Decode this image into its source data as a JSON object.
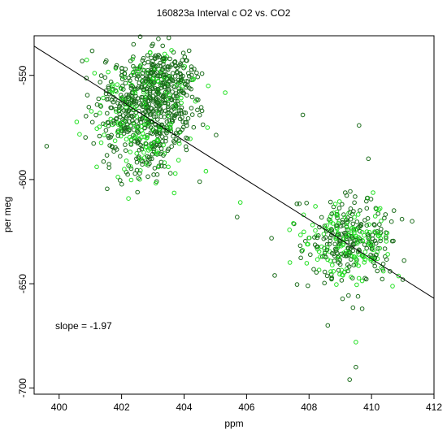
{
  "chart_data": {
    "type": "scatter",
    "title": "160823a   Interval c O2 vs. CO2",
    "xlabel": "ppm",
    "ylabel": "per meg",
    "xlim": [
      399.2,
      412.0
    ],
    "ylim": [
      -703,
      -531
    ],
    "xticks": [
      400,
      402,
      404,
      406,
      408,
      410,
      412
    ],
    "yticks": [
      -700,
      -650,
      -600,
      -550
    ],
    "grid": false,
    "annotation": "slope =  -1.97",
    "fit_line": {
      "x": [
        399.2,
        412.0
      ],
      "y": [
        -536.0,
        -657.0
      ]
    },
    "colors": {
      "series_a": "#1a6b1a",
      "series_b": "#22e022",
      "axis": "#000000"
    },
    "clusters": [
      {
        "cx": 402.7,
        "cy": -569,
        "sx": 0.75,
        "sy": 14,
        "n": 700,
        "fill_share": 0.25
      },
      {
        "cx": 403.4,
        "cy": -552,
        "sx": 0.5,
        "sy": 6,
        "n": 160,
        "fill_share": 0.15
      },
      {
        "cx": 409.2,
        "cy": -630,
        "sx": 0.75,
        "sy": 10,
        "n": 380,
        "fill_share": 0.45
      }
    ],
    "points": [
      {
        "x": 399.6,
        "y": -584,
        "series": "a"
      },
      {
        "x": 405.7,
        "y": -618,
        "series": "a"
      },
      {
        "x": 407.8,
        "y": -569,
        "series": "a"
      },
      {
        "x": 408.6,
        "y": -670,
        "series": "a"
      },
      {
        "x": 409.5,
        "y": -678,
        "series": "b"
      },
      {
        "x": 409.5,
        "y": -690,
        "series": "a"
      },
      {
        "x": 409.3,
        "y": -696,
        "series": "a"
      },
      {
        "x": 409.7,
        "y": -662,
        "series": "a"
      },
      {
        "x": 409.6,
        "y": -574,
        "series": "a"
      },
      {
        "x": 409.9,
        "y": -590,
        "series": "a"
      },
      {
        "x": 403.0,
        "y": -535,
        "series": "a"
      },
      {
        "x": 403.6,
        "y": -538,
        "series": "b"
      },
      {
        "x": 404.5,
        "y": -601,
        "series": "a"
      },
      {
        "x": 404.7,
        "y": -596,
        "series": "b"
      },
      {
        "x": 411.3,
        "y": -620,
        "series": "a"
      },
      {
        "x": 411.0,
        "y": -648,
        "series": "a"
      },
      {
        "x": 406.9,
        "y": -646,
        "series": "a"
      },
      {
        "x": 407.5,
        "y": -621,
        "series": "b"
      },
      {
        "x": 405.8,
        "y": -611,
        "series": "b"
      },
      {
        "x": 410.1,
        "y": -625,
        "series": "b"
      }
    ]
  }
}
